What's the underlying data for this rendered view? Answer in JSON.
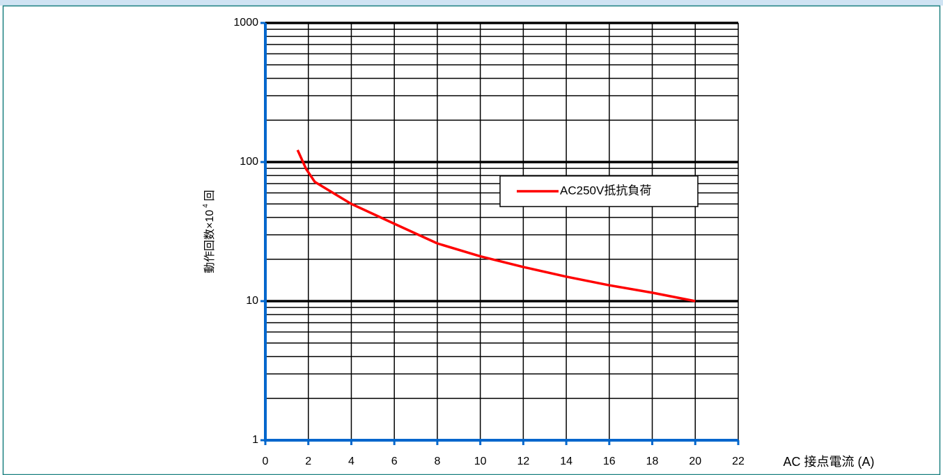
{
  "chart_data": {
    "type": "line",
    "x_label": "AC 接点電流 (A)",
    "y_label": {
      "text": "動作回数×10",
      "superscript": "4",
      "suffix": "回"
    },
    "x": [
      1.5,
      1.9,
      2.3,
      4,
      6,
      8,
      10,
      12,
      14,
      16,
      18,
      20
    ],
    "series": [
      {
        "name": "AC250V抵抗負荷",
        "color": "#ff0000",
        "values": [
          122,
          89,
          72,
          50,
          36,
          26,
          21,
          17.6,
          15,
          13,
          11.5,
          10
        ]
      }
    ],
    "xlim": [
      0,
      22
    ],
    "xticks": [
      0,
      2,
      4,
      6,
      8,
      10,
      12,
      14,
      16,
      18,
      20,
      22
    ],
    "ylim": [
      1,
      1000
    ],
    "yticks": [
      1,
      10,
      100,
      1000
    ],
    "yminorticks": [
      2,
      3,
      4,
      5,
      6,
      7,
      8,
      9,
      20,
      30,
      40,
      50,
      60,
      70,
      80,
      90,
      200,
      300,
      400,
      500,
      600,
      700,
      800,
      900
    ],
    "ylog": true,
    "grid": true,
    "legend": "upper right"
  }
}
